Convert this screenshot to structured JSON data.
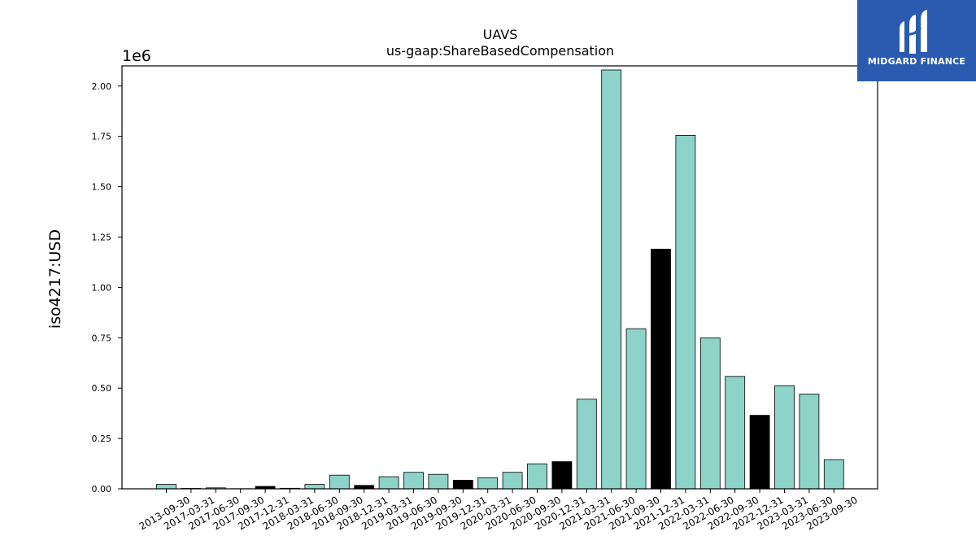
{
  "logo": {
    "text": "MIDGARD FINANCE",
    "background": "#2a5bb0"
  },
  "chart_data": {
    "type": "bar",
    "title": "UAVS",
    "subtitle": "us-gaap:ShareBasedCompensation",
    "ylabel": "iso4217:USD",
    "xlabel": "",
    "y_multiplier_label": "1e6",
    "ylim": [
      0,
      2100000
    ],
    "yticks": [
      0,
      250000,
      500000,
      750000,
      1000000,
      1250000,
      1500000,
      1750000,
      2000000
    ],
    "ytick_labels": [
      "0.00",
      "0.25",
      "0.50",
      "0.75",
      "1.00",
      "1.25",
      "1.50",
      "1.75",
      "2.00"
    ],
    "colors": {
      "quarter": "#8dd3c7",
      "year_end": "#000000",
      "edge": "#000000"
    },
    "categories": [
      "2013-09-30",
      "2017-03-31",
      "2017-06-30",
      "2017-09-30",
      "2017-12-31",
      "2018-03-31",
      "2018-06-30",
      "2018-09-30",
      "2018-12-31",
      "2019-03-31",
      "2019-06-30",
      "2019-09-30",
      "2019-12-31",
      "2020-03-31",
      "2020-06-30",
      "2020-09-30",
      "2020-12-31",
      "2021-03-31",
      "2021-06-30",
      "2021-09-30",
      "2021-12-31",
      "2022-03-31",
      "2022-06-30",
      "2022-09-30",
      "2022-12-31",
      "2023-03-31",
      "2023-06-30",
      "2023-09-30"
    ],
    "values": [
      22000,
      2000,
      5000,
      1000,
      12000,
      3000,
      22000,
      68000,
      17000,
      60000,
      82000,
      72000,
      43000,
      55000,
      82000,
      124000,
      135000,
      445000,
      2080000,
      795000,
      1190000,
      1755000,
      750000,
      558000,
      365000,
      512000,
      470000,
      145000
    ],
    "year_end": [
      false,
      false,
      false,
      false,
      true,
      false,
      false,
      false,
      true,
      false,
      false,
      false,
      true,
      false,
      false,
      false,
      true,
      false,
      false,
      false,
      true,
      false,
      false,
      false,
      true,
      false,
      false,
      false
    ],
    "grid": false,
    "legend": "none"
  }
}
